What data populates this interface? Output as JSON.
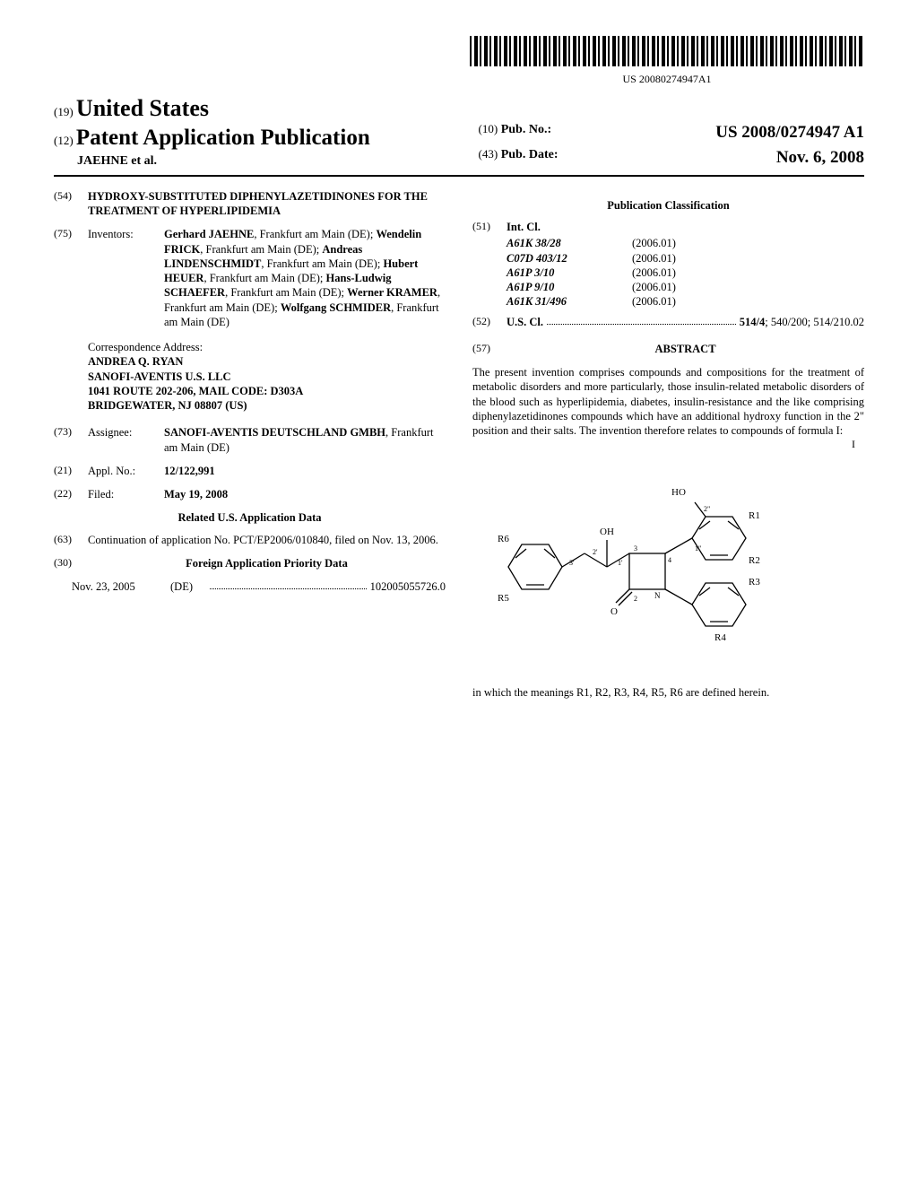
{
  "barcode_number": "US 20080274947A1",
  "header": {
    "code19": "(19)",
    "country": "United States",
    "code12": "(12)",
    "pubtitle": "Patent Application Publication",
    "authors_line": "JAEHNE et al.",
    "code10": "(10)",
    "pubno_label": "Pub. No.:",
    "pubno": "US 2008/0274947 A1",
    "code43": "(43)",
    "pubdate_label": "Pub. Date:",
    "pubdate": "Nov. 6, 2008"
  },
  "item54": {
    "code": "(54)",
    "title": "HYDROXY-SUBSTITUTED DIPHENYLAZETIDINONES FOR THE TREATMENT OF HYPERLIPIDEMIA"
  },
  "item75": {
    "code": "(75)",
    "label": "Inventors:",
    "text_html": "<b>Gerhard JAEHNE</b>, Frankfurt am Main (DE); <b>Wendelin FRICK</b>, Frankfurt am Main (DE); <b>Andreas LINDENSCHMIDT</b>, Frankfurt am Main (DE); <b>Hubert HEUER</b>, Frankfurt am Main (DE); <b>Hans-Ludwig SCHAEFER</b>, Frankfurt am Main (DE); <b>Werner KRAMER</b>, Frankfurt am Main (DE); <b>Wolfgang SCHMIDER</b>, Frankfurt am Main (DE)"
  },
  "correspondence": {
    "label": "Correspondence Address:",
    "lines": [
      "ANDREA Q. RYAN",
      "SANOFI-AVENTIS U.S. LLC",
      "1041 ROUTE 202-206, MAIL CODE: D303A",
      "BRIDGEWATER, NJ 08807 (US)"
    ]
  },
  "item73": {
    "code": "(73)",
    "label": "Assignee:",
    "text_html": "<b>SANOFI-AVENTIS DEUTSCHLAND GMBH</b>, Frankfurt am Main (DE)"
  },
  "item21": {
    "code": "(21)",
    "label": "Appl. No.:",
    "value": "12/122,991"
  },
  "item22": {
    "code": "(22)",
    "label": "Filed:",
    "value": "May 19, 2008"
  },
  "related": {
    "heading": "Related U.S. Application Data",
    "code63": "(63)",
    "text": "Continuation of application No. PCT/EP2006/010840, filed on Nov. 13, 2006."
  },
  "item30": {
    "code": "(30)",
    "heading": "Foreign Application Priority Data",
    "date": "Nov. 23, 2005",
    "country": "(DE)",
    "number": "102005055726.0"
  },
  "pubclass_heading": "Publication Classification",
  "item51": {
    "code": "(51)",
    "label": "Int. Cl.",
    "rows": [
      {
        "cls": "A61K 38/28",
        "year": "(2006.01)"
      },
      {
        "cls": "C07D 403/12",
        "year": "(2006.01)"
      },
      {
        "cls": "A61P 3/10",
        "year": "(2006.01)"
      },
      {
        "cls": "A61P 9/10",
        "year": "(2006.01)"
      },
      {
        "cls": "A61K 31/496",
        "year": "(2006.01)"
      }
    ]
  },
  "item52": {
    "code": "(52)",
    "label": "U.S. Cl.",
    "value": "514/4; 540/200; 514/210.02"
  },
  "abstract": {
    "code": "(57)",
    "heading": "ABSTRACT",
    "text": "The present invention comprises compounds and compositions for the treatment of metabolic disorders and more particularly, those insulin-related metabolic disorders of the blood such as hyperlipidemia, diabetes, insulin-resistance and the like comprising diphenylazetidinones compounds which have an additional hydroxy function in the 2\" position and their salts. The invention therefore relates to compounds of formula I:",
    "closing": "in which the meanings R1, R2, R3, R4, R5, R6 are defined herein.",
    "formula_label": "I"
  },
  "diagram": {
    "labels": {
      "R1": "R1",
      "R2": "R2",
      "R3": "R3",
      "R4": "R4",
      "R5": "R5",
      "R6": "R6",
      "HO": "HO",
      "OH": "OH",
      "O": "O",
      "N": "N",
      "p1p": "1'",
      "p2p": "2'",
      "p3p": "3'",
      "p1pp": "1\"",
      "p2pp": "2\"",
      "p2": "2",
      "p3": "3",
      "p4": "4"
    }
  }
}
